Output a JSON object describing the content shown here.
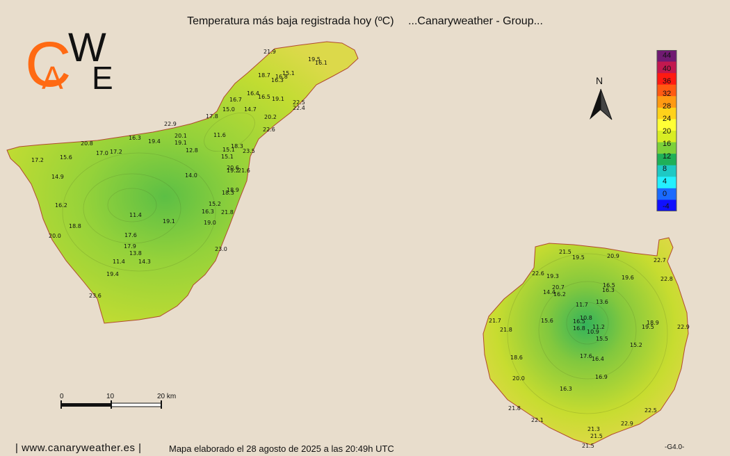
{
  "title": {
    "main": "Temperatura más baja registrada hoy (ºC)",
    "group": "...Canaryweather - Group..."
  },
  "logo": {
    "letters": [
      "C",
      "A",
      "W",
      "E"
    ],
    "colors": {
      "orange": "#ff6a13",
      "black": "#111111"
    }
  },
  "legend": {
    "labels": [
      "44",
      "40",
      "36",
      "32",
      "28",
      "24",
      "20",
      "16",
      "12",
      "8",
      "4",
      "0",
      "-4"
    ],
    "colors": [
      "#701a72",
      "#c2184f",
      "#ff1a12",
      "#ff5a12",
      "#ff9a12",
      "#ffd21a",
      "#ffff36",
      "#d8ed24",
      "#7cd13a",
      "#1fb058",
      "#1ec9c4",
      "#24f0ff",
      "#1a6aff",
      "#1010ff"
    ]
  },
  "north": {
    "letter": "N"
  },
  "scale_bar": {
    "labels": [
      "0",
      "10",
      "20 km"
    ]
  },
  "footer": {
    "url": "| www.canaryweather.es |",
    "map_info": "Mapa elaborado el 28 agosto de 2025 a las 20:49h UTC",
    "version": "-G4.0-"
  },
  "stations": {
    "tenerife": [
      "21.9",
      "19.5",
      "16.1",
      "18.7",
      "16.8",
      "15.1",
      "16.3",
      "16.4",
      "16.5",
      "16.7",
      "19.1",
      "22.5",
      "22.4",
      "15.0",
      "14.7",
      "20.2",
      "17.8",
      "22.6",
      "22.9",
      "16.3",
      "20.1",
      "19.4",
      "19.1",
      "11.6",
      "20.8",
      "17.0",
      "17.2",
      "17.2",
      "15.6",
      "12.8",
      "15.1",
      "18.3",
      "23.5",
      "15.1",
      "20.6",
      "19.2",
      "21.6",
      "14.9",
      "14.0",
      "18.9",
      "18.3",
      "16.2",
      "15.2",
      "16.3",
      "21.8",
      "11.4",
      "19.1",
      "19.0",
      "18.8",
      "20.0",
      "17.6",
      "17.9",
      "13.8",
      "23.0",
      "11.4",
      "14.3",
      "19.4",
      "23.6"
    ],
    "gran_canaria": [
      "21.5",
      "19.5",
      "20.9",
      "22.7",
      "22.6",
      "19.3",
      "19.6",
      "22.8",
      "20.7",
      "16.5",
      "14.4",
      "16.2",
      "16.3",
      "11.7",
      "13.6",
      "10.8",
      "18.9",
      "21.7",
      "15.6",
      "16.5",
      "11.2",
      "19.5",
      "22.9",
      "21.8",
      "16.8",
      "10.9",
      "15.5",
      "15.2",
      "18.6",
      "17.6",
      "16.4",
      "20.0",
      "16.9",
      "16.3",
      "21.8",
      "22.5",
      "22.1",
      "22.9",
      "21.3",
      "21.5",
      "21.5"
    ]
  }
}
